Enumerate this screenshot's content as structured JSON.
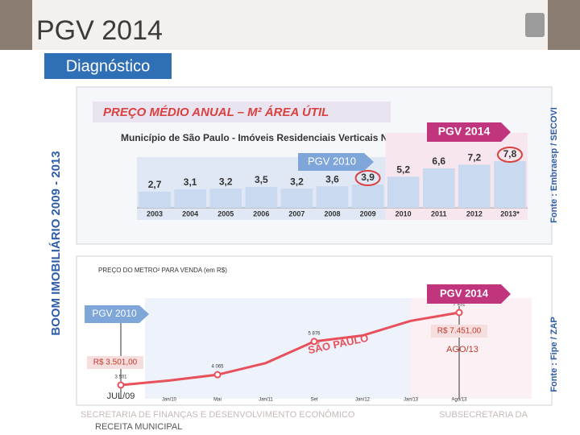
{
  "slide": {
    "title": "PGV 2014",
    "section": "Diagnóstico",
    "side_label": "BOOM IMOBILIÁRIO 2009 - 2013",
    "footer": [
      "SECRETARIA DE FINANÇAS E DESENVOLVIMENTO ECONÔMICO",
      "SUBSECRETARIA DA",
      "RECEITA MUNICIPAL"
    ]
  },
  "chart_data": [
    {
      "type": "bar",
      "title": "PREÇO MÉDIO ANUAL – M² ÁREA ÚTIL",
      "subtitle": "Município de São Paulo - Imóveis Residenciais Verticais Novos",
      "categories": [
        "2003",
        "2004",
        "2005",
        "2006",
        "2007",
        "2008",
        "2009",
        "2010",
        "2011",
        "2012",
        "2013*"
      ],
      "values": [
        2.7,
        3.1,
        3.2,
        3.5,
        3.2,
        3.6,
        3.9,
        5.2,
        6.6,
        7.2,
        7.8
      ],
      "value_labels": [
        "2,7",
        "3,1",
        "3,2",
        "3,5",
        "3,2",
        "3,6",
        "3,9",
        "5,2",
        "6,6",
        "7,2",
        "7,8"
      ],
      "color": "#c9daf0",
      "annotations": [
        "PGV 2010",
        "PGV 2014"
      ],
      "source": "Fonte : Embraesp / SECOVI"
    },
    {
      "type": "line",
      "title": "PREÇO DO METRO² PARA VENDA (em R$)",
      "categories": [
        null,
        "Jan/10",
        "Mai",
        "Jan/11",
        "Set",
        "Jan/12",
        "Jan/13",
        "Ago/13"
      ],
      "values": [
        3501,
        3750,
        4065,
        4700,
        5876,
        6200,
        7000,
        7451
      ],
      "value_labels": [
        "3 501",
        null,
        "4 065",
        null,
        "5 876",
        null,
        null,
        "7 451"
      ],
      "color": "#e8505b",
      "annotations": [
        "PGV 2010",
        "PGV 2014",
        "R$ 3.501,00",
        "JUL/09",
        "R$ 7.451,00",
        "AGO/13",
        "SÃO PAULO"
      ],
      "source": "Fonte : Fipe / ZAP"
    }
  ]
}
